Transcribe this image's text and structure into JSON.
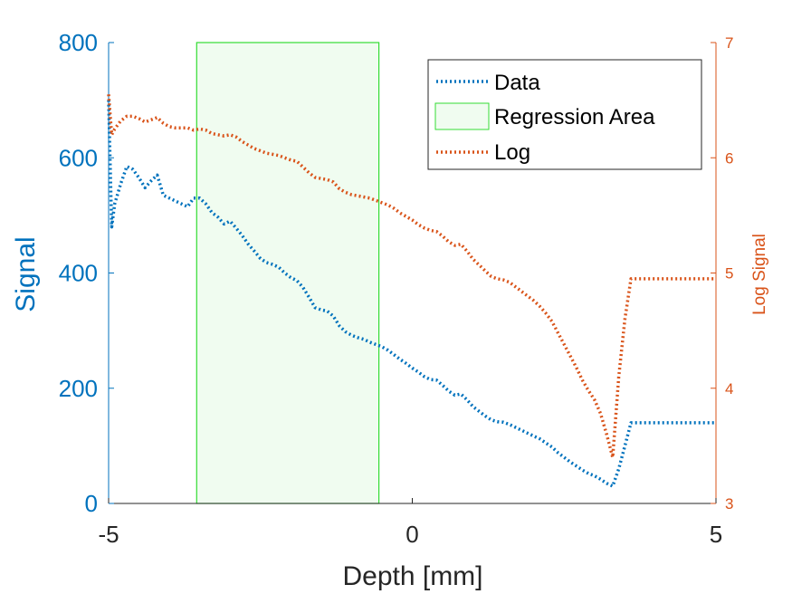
{
  "chart_data": {
    "type": "line",
    "xlabel": "Depth [mm]",
    "ylabel_left": "Signal",
    "ylabel_right": "Log Signal",
    "xlim": [
      -5,
      5
    ],
    "ylim_left": [
      0,
      800
    ],
    "ylim_right": [
      3,
      7
    ],
    "x_ticks": [
      -5,
      0,
      5
    ],
    "y_ticks_left": [
      0,
      200,
      400,
      600,
      800
    ],
    "y_ticks_right": [
      3,
      4,
      5,
      6,
      7
    ],
    "regression_area": {
      "x_start": -3.55,
      "x_end": -0.55,
      "name": "Regression Area",
      "fill": "#f0fcf0",
      "edge": "#33dd33"
    },
    "legend_position": "top-right",
    "series": [
      {
        "name": "Data",
        "axis": "left",
        "color": "#0072BD",
        "style": "dotted",
        "x": [
          -5.0,
          -4.95,
          -4.9,
          -4.8,
          -4.7,
          -4.6,
          -4.5,
          -4.4,
          -4.3,
          -4.2,
          -4.1,
          -4.0,
          -3.9,
          -3.8,
          -3.7,
          -3.6,
          -3.5,
          -3.4,
          -3.3,
          -3.2,
          -3.1,
          -3.0,
          -2.9,
          -2.8,
          -2.7,
          -2.6,
          -2.5,
          -2.4,
          -2.3,
          -2.2,
          -2.1,
          -2.0,
          -1.9,
          -1.8,
          -1.7,
          -1.6,
          -1.5,
          -1.4,
          -1.3,
          -1.2,
          -1.1,
          -1.0,
          -0.9,
          -0.8,
          -0.7,
          -0.6,
          -0.5,
          -0.4,
          -0.3,
          -0.2,
          -0.1,
          0.0,
          0.1,
          0.2,
          0.3,
          0.4,
          0.5,
          0.6,
          0.7,
          0.8,
          0.9,
          1.0,
          1.1,
          1.2,
          1.3,
          1.4,
          1.5,
          1.6,
          1.7,
          1.8,
          1.9,
          2.0,
          2.1,
          2.2,
          2.3,
          2.4,
          2.5,
          2.6,
          2.7,
          2.8,
          2.9,
          3.0,
          3.1,
          3.2,
          3.3,
          3.4,
          3.5,
          3.6,
          3.7,
          3.8,
          3.9,
          4.0,
          4.1,
          4.2,
          4.3,
          4.4,
          4.5,
          4.6,
          4.7,
          4.8,
          4.85,
          4.9,
          4.95,
          5.0
        ],
        "y": [
          700,
          480,
          520,
          555,
          585,
          580,
          565,
          548,
          560,
          570,
          535,
          530,
          525,
          520,
          515,
          530,
          530,
          520,
          505,
          497,
          485,
          490,
          478,
          465,
          450,
          438,
          425,
          418,
          415,
          410,
          400,
          392,
          387,
          375,
          358,
          340,
          336,
          334,
          325,
          308,
          298,
          292,
          288,
          285,
          280,
          276,
          272,
          266,
          258,
          250,
          243,
          235,
          228,
          220,
          215,
          214,
          205,
          195,
          188,
          190,
          180,
          168,
          160,
          152,
          145,
          142,
          141,
          137,
          132,
          127,
          122,
          117,
          112,
          105,
          98,
          88,
          80,
          72,
          65,
          58,
          52,
          48,
          42,
          35,
          30,
          60,
          100,
          140,
          140,
          140,
          140,
          140,
          140,
          140,
          140,
          140,
          140,
          140,
          140,
          140,
          140,
          140,
          140,
          140
        ]
      },
      {
        "name": "Log",
        "axis": "right",
        "color": "#D95319",
        "style": "dotted",
        "x": [
          -5.0,
          -4.95,
          -4.9,
          -4.8,
          -4.7,
          -4.6,
          -4.5,
          -4.4,
          -4.3,
          -4.2,
          -4.1,
          -4.0,
          -3.9,
          -3.8,
          -3.7,
          -3.6,
          -3.5,
          -3.4,
          -3.3,
          -3.2,
          -3.1,
          -3.0,
          -2.9,
          -2.8,
          -2.7,
          -2.6,
          -2.5,
          -2.4,
          -2.3,
          -2.2,
          -2.1,
          -2.0,
          -1.9,
          -1.8,
          -1.7,
          -1.6,
          -1.5,
          -1.4,
          -1.3,
          -1.2,
          -1.1,
          -1.0,
          -0.9,
          -0.8,
          -0.7,
          -0.6,
          -0.5,
          -0.4,
          -0.3,
          -0.2,
          -0.1,
          0.0,
          0.1,
          0.2,
          0.3,
          0.4,
          0.5,
          0.6,
          0.7,
          0.8,
          0.9,
          1.0,
          1.1,
          1.2,
          1.3,
          1.4,
          1.5,
          1.6,
          1.7,
          1.8,
          1.9,
          2.0,
          2.1,
          2.2,
          2.3,
          2.4,
          2.5,
          2.6,
          2.7,
          2.8,
          2.9,
          3.0,
          3.1,
          3.2,
          3.3,
          3.4,
          3.5,
          3.6,
          3.7,
          3.8,
          3.9,
          4.0,
          4.1,
          4.2,
          4.3,
          4.4,
          4.5,
          4.6,
          4.7,
          4.8,
          4.85,
          4.9,
          4.95,
          5.0
        ],
        "y": [
          6.55,
          6.2,
          6.25,
          6.32,
          6.36,
          6.36,
          6.34,
          6.31,
          6.33,
          6.35,
          6.3,
          6.27,
          6.26,
          6.26,
          6.26,
          6.24,
          6.25,
          6.24,
          6.21,
          6.2,
          6.19,
          6.2,
          6.18,
          6.14,
          6.11,
          6.08,
          6.06,
          6.04,
          6.03,
          6.02,
          6.0,
          5.98,
          5.97,
          5.92,
          5.87,
          5.83,
          5.82,
          5.81,
          5.79,
          5.73,
          5.7,
          5.68,
          5.67,
          5.66,
          5.65,
          5.63,
          5.61,
          5.59,
          5.56,
          5.52,
          5.49,
          5.46,
          5.42,
          5.39,
          5.37,
          5.36,
          5.32,
          5.27,
          5.24,
          5.25,
          5.19,
          5.12,
          5.07,
          5.02,
          4.97,
          4.95,
          4.94,
          4.92,
          4.88,
          4.84,
          4.8,
          4.76,
          4.71,
          4.65,
          4.58,
          4.48,
          4.38,
          4.28,
          4.18,
          4.07,
          3.98,
          3.9,
          3.78,
          3.6,
          3.4,
          4.1,
          4.6,
          4.95,
          4.95,
          4.95,
          4.95,
          4.95,
          4.95,
          4.95,
          4.95,
          4.95,
          4.95,
          4.95,
          4.95,
          4.95,
          4.95,
          4.95,
          4.95,
          4.95
        ]
      }
    ],
    "legend": [
      "Data",
      "Regression Area",
      "Log"
    ]
  }
}
